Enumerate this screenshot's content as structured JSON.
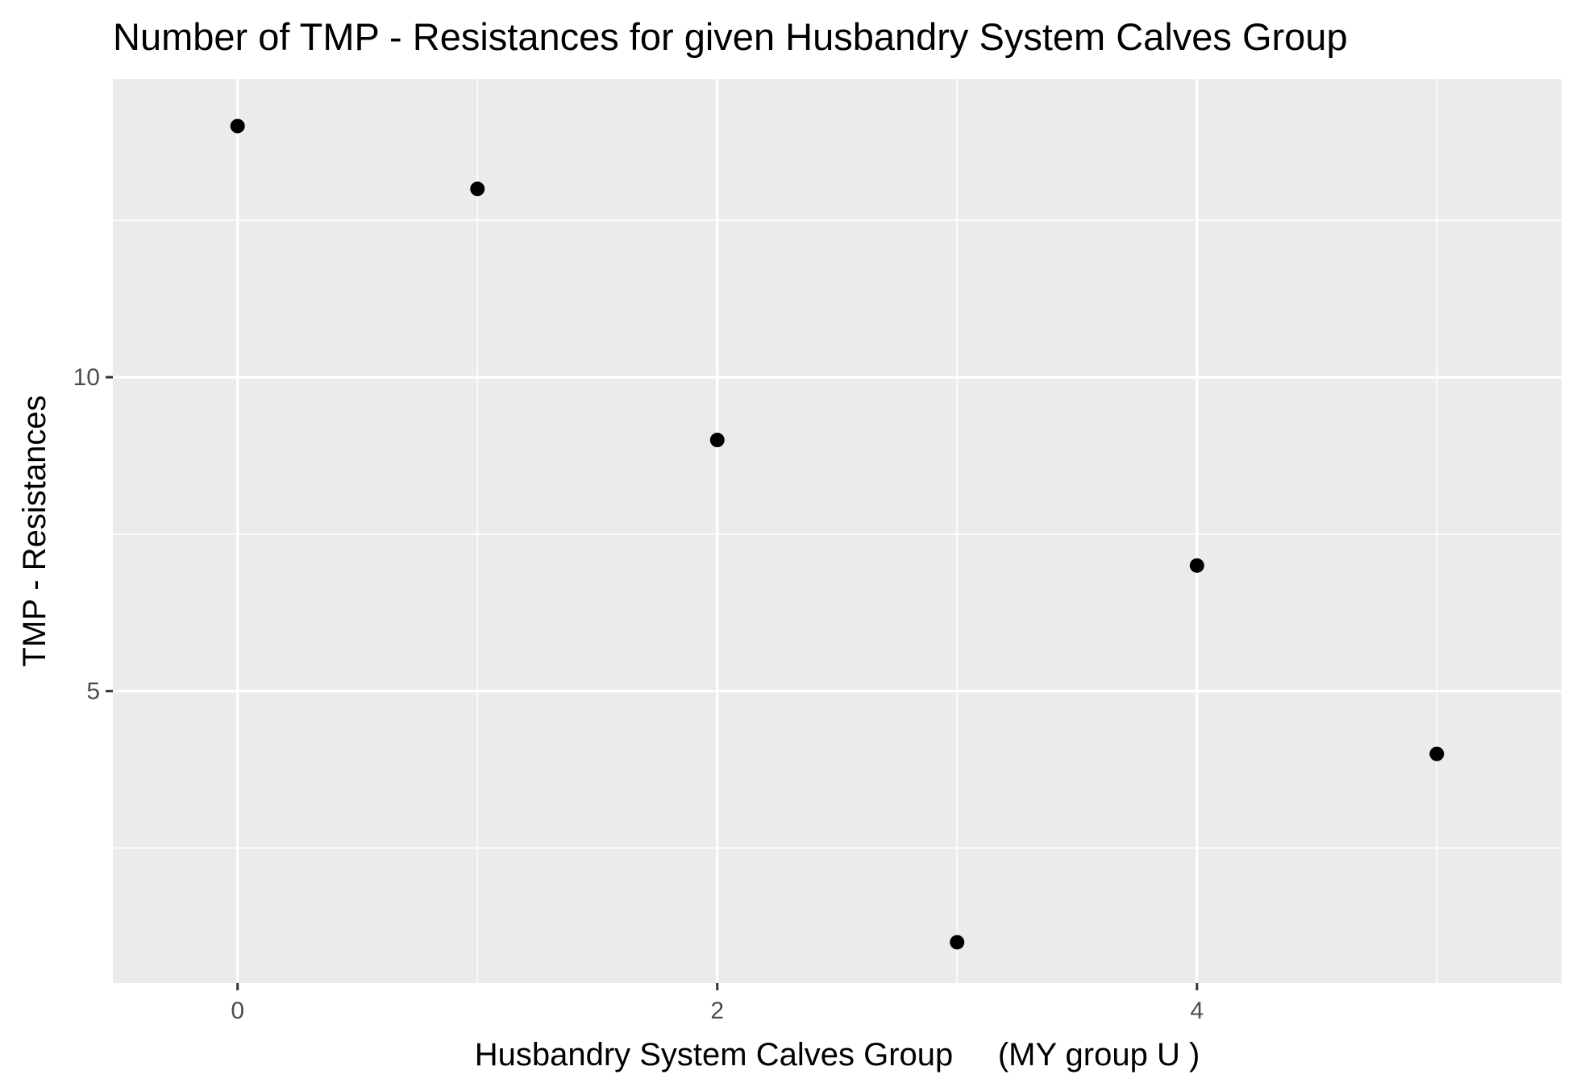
{
  "chart_data": {
    "type": "scatter",
    "title": "Number of TMP - Resistances for given Husbandry System Calves Group",
    "xlabel": "Husbandry System Calves Group     (MY group U )",
    "ylabel": "TMP - Resistances",
    "xlim": [
      -0.52,
      5.52
    ],
    "ylim": [
      0.35,
      14.75
    ],
    "x_ticks": [
      0,
      2,
      4
    ],
    "x_tick_labels": [
      "0",
      "2",
      "4"
    ],
    "x_minor_gridlines": [
      1,
      3,
      5
    ],
    "y_ticks": [
      5,
      10
    ],
    "y_tick_labels": [
      "5",
      "10"
    ],
    "y_minor_gridlines": [
      2.5,
      7.5,
      12.5
    ],
    "grid": true,
    "legend": "none",
    "point_color": "#000000",
    "panel_background": "#ebebeb",
    "grid_color": "#ffffff",
    "series": [
      {
        "x": [
          0,
          1,
          2,
          3,
          4,
          5
        ],
        "y": [
          14,
          13,
          9,
          1,
          7,
          4
        ]
      }
    ]
  }
}
